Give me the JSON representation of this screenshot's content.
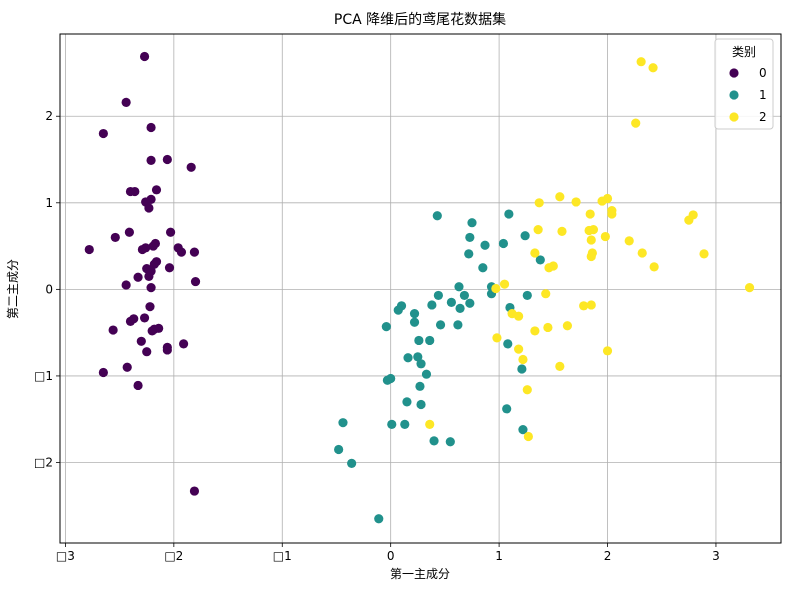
{
  "chart_data": {
    "type": "scatter",
    "title": "PCA 降维后的鸢尾花数据集",
    "xlabel": "第一主成分",
    "ylabel": "第二主成分",
    "xlim": [
      -3.05,
      3.6
    ],
    "ylim": [
      -2.93,
      2.95
    ],
    "xticks": [
      -3,
      -2,
      -1,
      0,
      1,
      2,
      3
    ],
    "yticks": [
      -2,
      -1,
      0,
      1,
      2
    ],
    "xtick_labels": [
      "□3",
      "□2",
      "□1",
      "0",
      "1",
      "2",
      "3"
    ],
    "ytick_labels": [
      "□2",
      "□1",
      "0",
      "1",
      "2"
    ],
    "grid": true,
    "legend": {
      "title": "类别",
      "position": "top-right"
    },
    "series": [
      {
        "name": "0",
        "color": "#440154",
        "points": [
          [
            -2.27,
            2.69
          ],
          [
            -2.44,
            2.16
          ],
          [
            -2.65,
            1.8
          ],
          [
            -2.21,
            1.87
          ],
          [
            -2.21,
            1.49
          ],
          [
            -2.06,
            1.5
          ],
          [
            -1.84,
            1.41
          ],
          [
            -2.36,
            1.13
          ],
          [
            -2.4,
            1.13
          ],
          [
            -2.16,
            1.15
          ],
          [
            -2.21,
            1.04
          ],
          [
            -2.26,
            1.01
          ],
          [
            -2.23,
            0.94
          ],
          [
            -2.03,
            0.66
          ],
          [
            -2.41,
            0.66
          ],
          [
            -2.54,
            0.6
          ],
          [
            -2.78,
            0.46
          ],
          [
            -2.17,
            0.53
          ],
          [
            -2.19,
            0.5
          ],
          [
            -2.26,
            0.48
          ],
          [
            -2.29,
            0.46
          ],
          [
            -1.96,
            0.48
          ],
          [
            -1.93,
            0.43
          ],
          [
            -1.81,
            0.43
          ],
          [
            -2.16,
            0.32
          ],
          [
            -2.18,
            0.29
          ],
          [
            -2.25,
            0.24
          ],
          [
            -2.21,
            0.21
          ],
          [
            -2.04,
            0.25
          ],
          [
            -2.23,
            0.15
          ],
          [
            -2.33,
            0.14
          ],
          [
            -1.8,
            0.09
          ],
          [
            -2.44,
            0.05
          ],
          [
            -2.21,
            0.02
          ],
          [
            -2.22,
            -0.2
          ],
          [
            -2.27,
            -0.33
          ],
          [
            -2.37,
            -0.34
          ],
          [
            -2.4,
            -0.37
          ],
          [
            -2.14,
            -0.45
          ],
          [
            -2.18,
            -0.46
          ],
          [
            -2.2,
            -0.48
          ],
          [
            -2.56,
            -0.47
          ],
          [
            -2.3,
            -0.6
          ],
          [
            -2.06,
            -0.67
          ],
          [
            -1.91,
            -0.63
          ],
          [
            -2.06,
            -0.7
          ],
          [
            -2.25,
            -0.72
          ],
          [
            -2.43,
            -0.9
          ],
          [
            -2.65,
            -0.96
          ],
          [
            -2.33,
            -1.11
          ],
          [
            -1.81,
            -2.33
          ]
        ]
      },
      {
        "name": "1",
        "color": "#21918c",
        "points": [
          [
            0.43,
            0.85
          ],
          [
            0.75,
            0.77
          ],
          [
            1.09,
            0.87
          ],
          [
            0.73,
            0.6
          ],
          [
            0.87,
            0.51
          ],
          [
            1.04,
            0.53
          ],
          [
            1.24,
            0.62
          ],
          [
            0.72,
            0.41
          ],
          [
            1.38,
            0.34
          ],
          [
            0.85,
            0.25
          ],
          [
            0.63,
            0.03
          ],
          [
            0.93,
            0.03
          ],
          [
            0.44,
            -0.07
          ],
          [
            0.68,
            -0.07
          ],
          [
            0.93,
            -0.05
          ],
          [
            1.26,
            -0.07
          ],
          [
            0.56,
            -0.15
          ],
          [
            0.38,
            -0.18
          ],
          [
            0.73,
            -0.16
          ],
          [
            0.64,
            -0.22
          ],
          [
            0.1,
            -0.19
          ],
          [
            0.07,
            -0.24
          ],
          [
            1.1,
            -0.21
          ],
          [
            0.22,
            -0.28
          ],
          [
            0.22,
            -0.38
          ],
          [
            0.46,
            -0.41
          ],
          [
            0.62,
            -0.41
          ],
          [
            -0.04,
            -0.43
          ],
          [
            0.36,
            -0.59
          ],
          [
            0.26,
            -0.59
          ],
          [
            1.08,
            -0.63
          ],
          [
            0.25,
            -0.78
          ],
          [
            0.16,
            -0.79
          ],
          [
            0.28,
            -0.86
          ],
          [
            1.21,
            -0.92
          ],
          [
            0.33,
            -0.98
          ],
          [
            -0.03,
            -1.05
          ],
          [
            0.0,
            -1.03
          ],
          [
            0.27,
            -1.12
          ],
          [
            0.15,
            -1.3
          ],
          [
            0.28,
            -1.33
          ],
          [
            1.07,
            -1.38
          ],
          [
            -0.44,
            -1.54
          ],
          [
            0.01,
            -1.56
          ],
          [
            0.13,
            -1.56
          ],
          [
            1.22,
            -1.62
          ],
          [
            0.4,
            -1.75
          ],
          [
            0.55,
            -1.76
          ],
          [
            -0.48,
            -1.85
          ],
          [
            -0.36,
            -2.01
          ],
          [
            -0.11,
            -2.65
          ]
        ]
      },
      {
        "name": "2",
        "color": "#fde725",
        "points": [
          [
            2.31,
            2.63
          ],
          [
            2.42,
            2.56
          ],
          [
            2.26,
            1.92
          ],
          [
            1.56,
            1.07
          ],
          [
            2.0,
            1.05
          ],
          [
            1.95,
            1.02
          ],
          [
            1.71,
            1.01
          ],
          [
            1.37,
            1.0
          ],
          [
            2.04,
            0.91
          ],
          [
            2.04,
            0.87
          ],
          [
            1.84,
            0.87
          ],
          [
            2.79,
            0.86
          ],
          [
            2.75,
            0.8
          ],
          [
            1.87,
            0.69
          ],
          [
            1.83,
            0.68
          ],
          [
            1.36,
            0.69
          ],
          [
            1.58,
            0.67
          ],
          [
            1.85,
            0.57
          ],
          [
            2.2,
            0.56
          ],
          [
            1.98,
            0.61
          ],
          [
            1.86,
            0.42
          ],
          [
            1.85,
            0.38
          ],
          [
            2.32,
            0.42
          ],
          [
            1.33,
            0.42
          ],
          [
            2.89,
            0.41
          ],
          [
            1.5,
            0.27
          ],
          [
            1.46,
            0.25
          ],
          [
            2.43,
            0.26
          ],
          [
            1.05,
            0.06
          ],
          [
            3.31,
            0.02
          ],
          [
            1.43,
            -0.05
          ],
          [
            0.97,
            0.01
          ],
          [
            1.78,
            -0.19
          ],
          [
            1.85,
            -0.18
          ],
          [
            1.12,
            -0.28
          ],
          [
            1.18,
            -0.31
          ],
          [
            1.63,
            -0.42
          ],
          [
            1.45,
            -0.44
          ],
          [
            1.33,
            -0.48
          ],
          [
            0.98,
            -0.56
          ],
          [
            1.18,
            -0.69
          ],
          [
            2.0,
            -0.71
          ],
          [
            1.22,
            -0.81
          ],
          [
            1.56,
            -0.89
          ],
          [
            1.26,
            -1.16
          ],
          [
            0.36,
            -1.56
          ],
          [
            1.27,
            -1.7
          ]
        ]
      }
    ]
  }
}
